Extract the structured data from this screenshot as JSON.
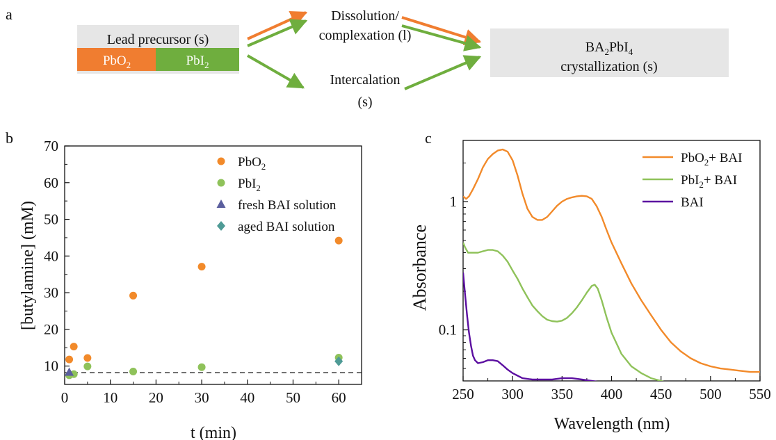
{
  "colors": {
    "orange": "#f28a2a",
    "orange_dark": "#f07d30",
    "green": "#6fae3e",
    "green_light": "#8fc25a",
    "purple": "#5b0ea0",
    "triangle": "#5b5f9e",
    "diamond": "#4f9b96",
    "gray_box": "#e6e6e6"
  },
  "panel_a": {
    "label": "a",
    "lead": {
      "title": "Lead precursor (s)",
      "left": "PbO",
      "left_sub": "2",
      "right": "PbI",
      "right_sub": "2"
    },
    "dissolution": {
      "line1": "Dissolution/",
      "line2": "complexation (l)"
    },
    "intercalation": {
      "line1": "Intercalation",
      "line2": "(s)"
    },
    "product": {
      "pre": "BA",
      "sub1": "2",
      "mid": "PbI",
      "sub2": "4",
      "line2": "crystallization (s)"
    }
  },
  "chart_data": [
    {
      "panel": "b",
      "type": "scatter",
      "xlabel": "t (min)",
      "ylabel": "[butylamine] (mM)",
      "xlim": [
        0,
        65
      ],
      "ylim": [
        5,
        70
      ],
      "xticks": [
        0,
        10,
        20,
        30,
        40,
        50,
        60
      ],
      "yticks": [
        10,
        20,
        30,
        40,
        50,
        60,
        70
      ],
      "legend_position": "top-right",
      "baseline": 8.2,
      "series": [
        {
          "name": "PbO",
          "name_sub": "2",
          "marker": "circle",
          "color": "#f28a2a",
          "points": [
            [
              1,
              11.8
            ],
            [
              2,
              15.3
            ],
            [
              5,
              12.2
            ],
            [
              15,
              29.2
            ],
            [
              30,
              37.1
            ],
            [
              60,
              44.2
            ]
          ]
        },
        {
          "name": "PbI",
          "name_sub": "2",
          "marker": "circle",
          "color": "#8fc25a",
          "points": [
            [
              1,
              7.5
            ],
            [
              2,
              7.8
            ],
            [
              5,
              9.9
            ],
            [
              15,
              8.5
            ],
            [
              30,
              9.7
            ],
            [
              60,
              12.3
            ]
          ]
        },
        {
          "name": "fresh BAI solution",
          "marker": "triangle",
          "color": "#5b5f9e",
          "points": [
            [
              1,
              8.3
            ]
          ]
        },
        {
          "name": "aged BAI solution",
          "marker": "diamond",
          "color": "#4f9b96",
          "points": [
            [
              60,
              11.3
            ]
          ]
        }
      ]
    },
    {
      "panel": "c",
      "type": "line",
      "xlabel": "Wavelength (nm)",
      "ylabel": "Absorbance",
      "xlim": [
        250,
        550
      ],
      "ylim": [
        0.04,
        3.0
      ],
      "yscale": "log",
      "xticks": [
        250,
        300,
        350,
        400,
        450,
        500,
        550
      ],
      "ytick_labels": [
        {
          "value": 0.1,
          "label": "0.1"
        },
        {
          "value": 1,
          "label": "1"
        }
      ],
      "legend_position": "top-right",
      "series": [
        {
          "name": "PbO",
          "name_sub": "2",
          "name_rest": "+ BAI",
          "color": "#f28a2a",
          "x": [
            250,
            253,
            256,
            260,
            265,
            270,
            275,
            280,
            285,
            290,
            295,
            300,
            305,
            310,
            315,
            320,
            325,
            330,
            335,
            340,
            345,
            350,
            355,
            360,
            365,
            370,
            375,
            380,
            385,
            390,
            395,
            400,
            410,
            420,
            430,
            440,
            450,
            460,
            470,
            480,
            490,
            500,
            510,
            520,
            530,
            540,
            550
          ],
          "y": [
            1.1,
            1.05,
            1.1,
            1.25,
            1.5,
            1.85,
            2.15,
            2.35,
            2.5,
            2.55,
            2.45,
            2.1,
            1.6,
            1.15,
            0.88,
            0.76,
            0.72,
            0.72,
            0.76,
            0.84,
            0.93,
            1.0,
            1.05,
            1.08,
            1.1,
            1.11,
            1.1,
            1.05,
            0.92,
            0.76,
            0.6,
            0.48,
            0.33,
            0.23,
            0.17,
            0.13,
            0.1,
            0.08,
            0.068,
            0.06,
            0.055,
            0.052,
            0.05,
            0.049,
            0.048,
            0.047,
            0.047
          ]
        },
        {
          "name": "PbI",
          "name_sub": "2",
          "name_rest": "+ BAI",
          "color": "#8fc25a",
          "x": [
            250,
            252,
            255,
            260,
            265,
            270,
            275,
            280,
            285,
            290,
            295,
            300,
            305,
            310,
            315,
            320,
            325,
            330,
            335,
            340,
            345,
            350,
            355,
            360,
            365,
            370,
            375,
            380,
            383,
            386,
            390,
            395,
            400,
            410,
            420,
            430,
            440,
            450,
            460,
            470,
            480
          ],
          "y": [
            0.48,
            0.44,
            0.4,
            0.4,
            0.4,
            0.41,
            0.42,
            0.42,
            0.41,
            0.38,
            0.34,
            0.29,
            0.25,
            0.21,
            0.18,
            0.155,
            0.14,
            0.128,
            0.12,
            0.117,
            0.116,
            0.118,
            0.124,
            0.135,
            0.15,
            0.17,
            0.195,
            0.22,
            0.225,
            0.21,
            0.17,
            0.125,
            0.095,
            0.065,
            0.052,
            0.046,
            0.042,
            0.04,
            0.038,
            0.037,
            0.036
          ]
        },
        {
          "name": "BAI",
          "color": "#5b0ea0",
          "x": [
            250,
            252,
            254,
            256,
            258,
            260,
            262,
            265,
            270,
            275,
            280,
            285,
            290,
            295,
            300,
            305,
            310,
            320,
            330,
            340,
            350,
            360,
            370,
            380,
            390,
            400,
            410,
            420
          ],
          "y": [
            0.28,
            0.19,
            0.13,
            0.095,
            0.075,
            0.063,
            0.058,
            0.055,
            0.056,
            0.058,
            0.058,
            0.057,
            0.053,
            0.049,
            0.046,
            0.044,
            0.042,
            0.041,
            0.041,
            0.041,
            0.042,
            0.042,
            0.041,
            0.04,
            0.039,
            0.038,
            0.037,
            0.037
          ]
        }
      ]
    }
  ]
}
